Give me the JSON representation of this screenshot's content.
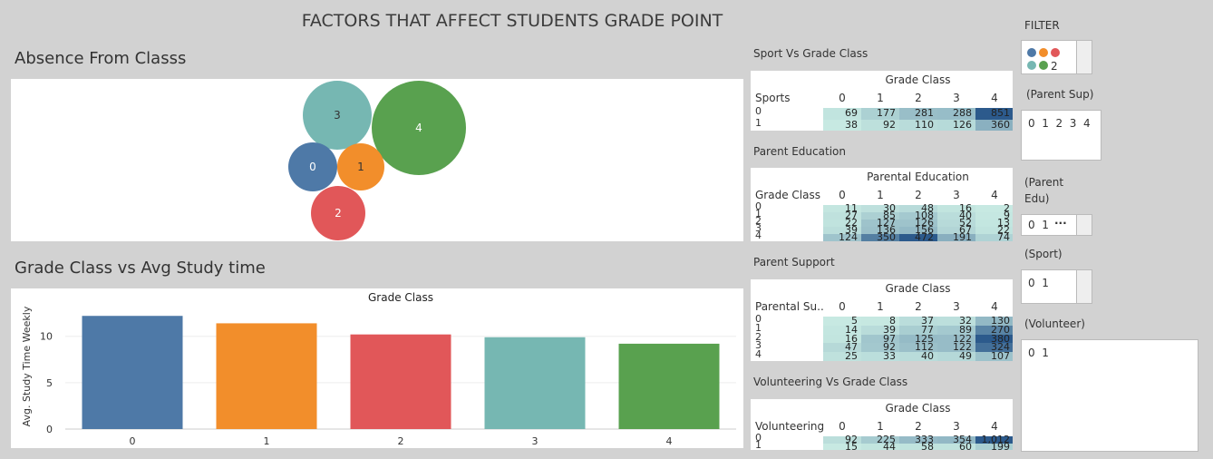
{
  "title": "FACTORS THAT AFFECT STUDENTS GRADE POINT",
  "absence": {
    "title": "Absence From Classs",
    "bubbles": [
      {
        "label": "3",
        "color": "#76b7b2"
      },
      {
        "label": "4",
        "color": "#59a14f"
      },
      {
        "label": "0",
        "color": "#4e79a7"
      },
      {
        "label": "1",
        "color": "#f28e2b"
      },
      {
        "label": "2",
        "color": "#e15759"
      }
    ]
  },
  "chart_data": {
    "type": "bar",
    "title": "Grade Class vs Avg Study time",
    "header": "Grade Class",
    "ylabel": "Avg. Study Time Weekly",
    "categories": [
      "0",
      "1",
      "2",
      "3",
      "4"
    ],
    "values": [
      12.2,
      11.4,
      10.2,
      9.9,
      9.2
    ],
    "colors": [
      "#4e79a7",
      "#f28e2b",
      "#e15759",
      "#76b7b2",
      "#59a14f"
    ],
    "ylim": [
      0,
      13.2
    ],
    "yticks": [
      "0",
      "5",
      "10"
    ]
  },
  "heatmaps": [
    {
      "id": "sport",
      "title": "Sport Vs Grade Class",
      "col_header": "Grade Class",
      "row_header": "Sports",
      "cols": [
        "0",
        "1",
        "2",
        "3",
        "4"
      ],
      "rows": [
        {
          "label": "0",
          "values": [
            69,
            177,
            281,
            288,
            851
          ]
        },
        {
          "label": "1",
          "values": [
            38,
            92,
            110,
            126,
            360
          ]
        }
      ]
    },
    {
      "id": "parent-edu",
      "title": "Parent Education",
      "col_header": "Parental Education",
      "row_header": "Grade Class",
      "cols": [
        "0",
        "1",
        "2",
        "3",
        "4"
      ],
      "rows": [
        {
          "label": "0",
          "values": [
            11,
            30,
            48,
            16,
            2
          ]
        },
        {
          "label": "1",
          "values": [
            27,
            85,
            108,
            40,
            9
          ]
        },
        {
          "label": "2",
          "values": [
            22,
            127,
            126,
            52,
            13
          ]
        },
        {
          "label": "3",
          "values": [
            39,
            136,
            156,
            67,
            22
          ]
        },
        {
          "label": "4",
          "values": [
            124,
            350,
            472,
            191,
            74
          ]
        }
      ]
    },
    {
      "id": "parent-support",
      "title": "Parent Support",
      "col_header": "Grade Class",
      "row_header": "Parental Su..",
      "cols": [
        "0",
        "1",
        "2",
        "3",
        "4"
      ],
      "rows": [
        {
          "label": "0",
          "values": [
            5,
            8,
            37,
            32,
            130
          ]
        },
        {
          "label": "1",
          "values": [
            14,
            39,
            77,
            89,
            270
          ]
        },
        {
          "label": "2",
          "values": [
            16,
            97,
            125,
            122,
            380
          ]
        },
        {
          "label": "3",
          "values": [
            47,
            92,
            112,
            122,
            324
          ]
        },
        {
          "label": "4",
          "values": [
            25,
            33,
            40,
            49,
            107
          ]
        }
      ]
    },
    {
      "id": "volunteer",
      "title": "Volunteering Vs Grade Class",
      "col_header": "Grade Class",
      "row_header": "Volunteering",
      "cols": [
        "0",
        "1",
        "2",
        "3",
        "4"
      ],
      "rows": [
        {
          "label": "0",
          "values": [
            92,
            225,
            333,
            354,
            "1,012"
          ]
        },
        {
          "label": "1",
          "values": [
            15,
            44,
            58,
            60,
            199
          ]
        }
      ]
    }
  ],
  "filter": {
    "title": "FILTER",
    "legend_colors": [
      "#4e79a7",
      "#f28e2b",
      "#e15759",
      "#76b7b2",
      "#59a14f"
    ],
    "legend_text": "2",
    "parent_sup_label": "(Parent Sup)",
    "parent_sup_values": "0  1  2  3  4",
    "parent_edu_label": "(Parent\nEdu)",
    "parent_edu_values": "0  1",
    "parent_edu_more": "···",
    "sport_label": "(Sport)",
    "sport_values": "0  1",
    "volunteer_label": "(Volunteer)",
    "volunteer_values": "0  1"
  }
}
